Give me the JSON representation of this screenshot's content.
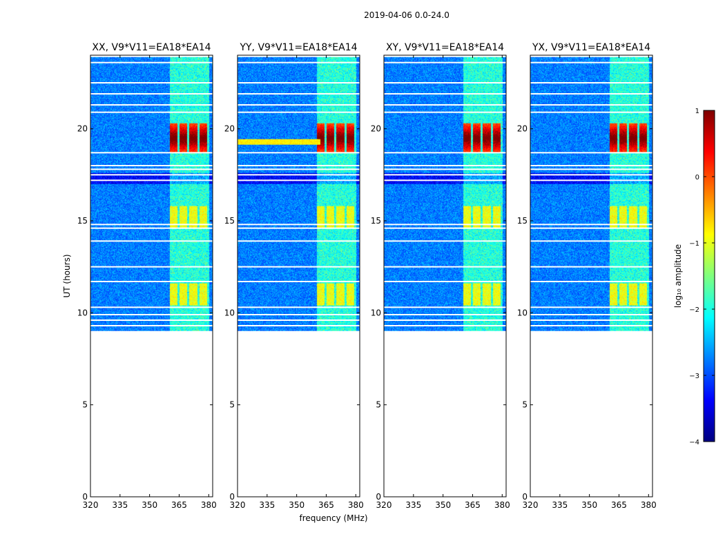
{
  "title": "2019-04-06 0.0-24.0",
  "chart_data": {
    "type": "heatmap",
    "title": "2019-04-06 0.0-24.0",
    "ylabel": "UT (hours)",
    "xlabel": "frequency (MHz)",
    "xlim": [
      320,
      382
    ],
    "ylim": [
      0,
      24
    ],
    "x_ticks": [
      320,
      335,
      350,
      365,
      380
    ],
    "y_ticks": [
      0,
      5,
      10,
      15,
      20
    ],
    "data_start_hour": 9.0,
    "data_end_hour": 23.9,
    "panels": [
      {
        "name": "xx",
        "title": "XX, V9*V11=EA18*EA14",
        "hot_bands": [
          19.5
        ],
        "mid_bands": [
          15.2,
          11.0
        ],
        "rfi_broadband_hour": 0
      },
      {
        "name": "yy",
        "title": "YY, V9*V11=EA18*EA14",
        "hot_bands": [
          19.5
        ],
        "mid_bands": [
          15.2,
          11.0
        ],
        "rfi_broadband_hour": 19.3
      },
      {
        "name": "xy",
        "title": "XY, V9*V11=EA18*EA14",
        "hot_bands": [
          19.5
        ],
        "mid_bands": [
          15.2,
          11.0
        ],
        "rfi_broadband_hour": 0
      },
      {
        "name": "yx",
        "title": "YX, V9*V11=EA18*EA14",
        "hot_bands": [
          19.5
        ],
        "mid_bands": [
          15.2,
          11.0
        ],
        "rfi_broadband_hour": 0
      }
    ],
    "rfi_freq_channels_mhz": [
      [
        360,
        364
      ],
      [
        365,
        369
      ],
      [
        370,
        374
      ],
      [
        375,
        379
      ]
    ],
    "flagged_hours": [
      23.6,
      22.5,
      21.9,
      21.3,
      20.9,
      18.7,
      18.0,
      17.8,
      17.5,
      17.2,
      14.8,
      14.6,
      13.9,
      12.5,
      11.7,
      10.3,
      9.9,
      9.6,
      9.3
    ],
    "colorbar": {
      "label": "log₁₀ amplitude",
      "range": [
        -4,
        1
      ],
      "ticks": [
        -4,
        -3,
        -2,
        -1,
        0,
        1
      ],
      "tick_labels": [
        "−4",
        "−3",
        "−2",
        "−1",
        "0",
        "1"
      ],
      "colormap": [
        "#00007f",
        "#0000ff",
        "#007fff",
        "#00ffff",
        "#7fff7f",
        "#ffff00",
        "#ff7f00",
        "#ff0000",
        "#7f0000"
      ]
    }
  }
}
